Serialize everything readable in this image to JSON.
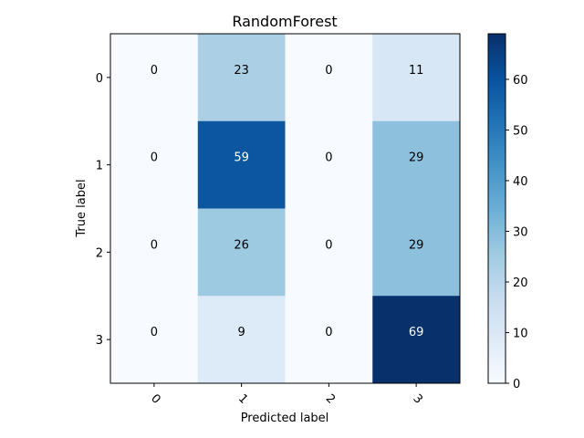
{
  "chart_data": {
    "type": "heatmap",
    "title": "RandomForest",
    "xlabel": "Predicted label",
    "ylabel": "True label",
    "x_categories": [
      "0",
      "1",
      "2",
      "3"
    ],
    "y_categories": [
      "0",
      "1",
      "2",
      "3"
    ],
    "values": [
      [
        0,
        23,
        0,
        11
      ],
      [
        0,
        59,
        0,
        29
      ],
      [
        0,
        26,
        0,
        29
      ],
      [
        0,
        9,
        0,
        69
      ]
    ],
    "colormap": "Blues",
    "color_range": [
      0,
      69
    ],
    "colorbar_ticks": [
      "0",
      "10",
      "20",
      "30",
      "40",
      "50",
      "60"
    ],
    "text_color_light": "#ffffff",
    "text_color_dark": "#000000"
  }
}
